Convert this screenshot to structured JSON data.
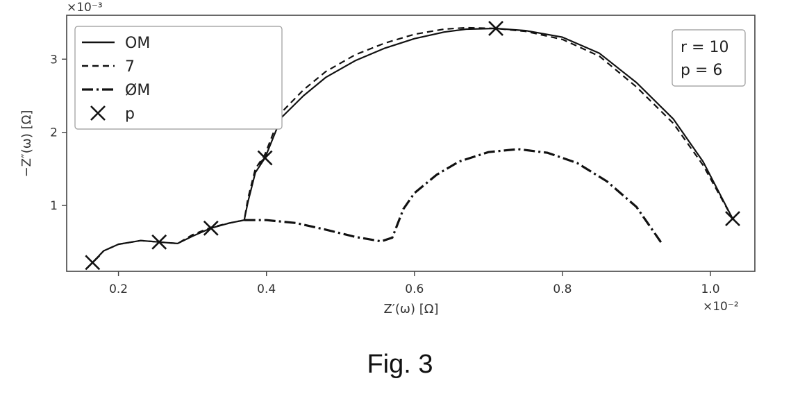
{
  "chart_data": {
    "type": "line",
    "title": "",
    "xlabel": "Z′(ω) [Ω]",
    "ylabel": "−Z″(ω) [Ω]",
    "x_exponent_label": "×10⁻²",
    "y_exponent_label": "×10⁻³",
    "xlim": [
      0.13,
      1.06
    ],
    "ylim": [
      0.1,
      3.6
    ],
    "x_ticks": [
      0.2,
      0.4,
      0.6,
      0.8,
      1.0
    ],
    "x_tick_labels": [
      "0.2",
      "0.4",
      "0.6",
      "0.8",
      "1.0"
    ],
    "y_ticks": [
      1,
      2,
      3
    ],
    "y_tick_labels": [
      "1",
      "2",
      "3"
    ],
    "grid": false,
    "legend_position": "top-left",
    "series": [
      {
        "name": "OM",
        "style": "solid",
        "color": "#111111",
        "x": [
          0.165,
          0.18,
          0.2,
          0.23,
          0.255,
          0.28,
          0.3,
          0.325,
          0.35,
          0.37,
          0.375,
          0.385,
          0.398,
          0.42,
          0.45,
          0.48,
          0.52,
          0.56,
          0.6,
          0.64,
          0.67,
          0.71,
          0.75,
          0.8,
          0.85,
          0.9,
          0.95,
          0.99,
          1.03
        ],
        "y": [
          0.22,
          0.38,
          0.47,
          0.52,
          0.5,
          0.48,
          0.58,
          0.69,
          0.76,
          0.8,
          1.05,
          1.45,
          1.65,
          2.2,
          2.5,
          2.75,
          2.98,
          3.15,
          3.28,
          3.37,
          3.41,
          3.42,
          3.39,
          3.3,
          3.08,
          2.68,
          2.18,
          1.6,
          0.82
        ]
      },
      {
        "name": "7",
        "style": "dashed",
        "color": "#111111",
        "x": [
          0.165,
          0.18,
          0.2,
          0.23,
          0.255,
          0.28,
          0.3,
          0.325,
          0.35,
          0.37,
          0.375,
          0.385,
          0.398,
          0.42,
          0.45,
          0.48,
          0.52,
          0.56,
          0.6,
          0.64,
          0.67,
          0.71,
          0.75,
          0.8,
          0.85,
          0.9,
          0.95,
          0.99,
          1.03
        ],
        "y": [
          0.22,
          0.38,
          0.47,
          0.52,
          0.5,
          0.48,
          0.6,
          0.7,
          0.76,
          0.8,
          1.1,
          1.5,
          1.7,
          2.27,
          2.58,
          2.83,
          3.06,
          3.22,
          3.34,
          3.41,
          3.43,
          3.42,
          3.38,
          3.27,
          3.04,
          2.62,
          2.12,
          1.55,
          0.82
        ]
      },
      {
        "name": "ØM",
        "style": "dashdot",
        "color": "#111111",
        "x": [
          0.37,
          0.4,
          0.44,
          0.48,
          0.52,
          0.555,
          0.57,
          0.585,
          0.6,
          0.63,
          0.66,
          0.7,
          0.74,
          0.78,
          0.82,
          0.86,
          0.9,
          0.935
        ],
        "y": [
          0.8,
          0.8,
          0.76,
          0.67,
          0.57,
          0.51,
          0.56,
          0.95,
          1.17,
          1.42,
          1.6,
          1.73,
          1.77,
          1.72,
          1.58,
          1.33,
          0.98,
          0.47
        ]
      },
      {
        "name": "p",
        "style": "marker-x",
        "color": "#111111",
        "x": [
          0.165,
          0.255,
          0.325,
          0.398,
          0.71,
          1.03
        ],
        "y": [
          0.22,
          0.5,
          0.69,
          1.65,
          3.42,
          0.82
        ]
      }
    ],
    "annotation": [
      "r = 10",
      "p = 6"
    ]
  },
  "caption": "Fig. 3"
}
